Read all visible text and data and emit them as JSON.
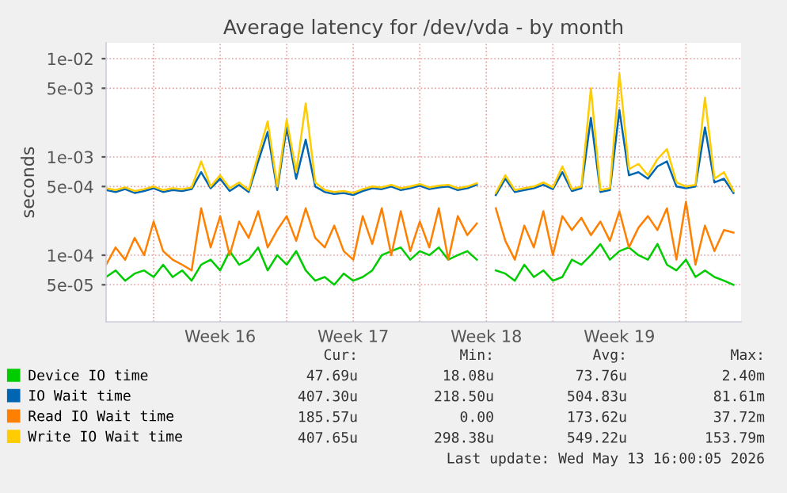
{
  "chart_data": {
    "type": "line",
    "title": "Average latency for /dev/vda - by month",
    "ylabel": "seconds",
    "x": [
      "2026-04-10T12:00",
      "2026-04-11T00:00",
      "2026-04-11T12:00",
      "2026-04-12T00:00",
      "2026-04-12T12:00",
      "2026-04-13T00:00",
      "2026-04-13T12:00",
      "2026-04-14T00:00",
      "2026-04-14T12:00",
      "2026-04-15T00:00",
      "2026-04-15T12:00",
      "2026-04-16T00:00",
      "2026-04-16T12:00",
      "2026-04-17T00:00",
      "2026-04-17T12:00",
      "2026-04-18T00:00",
      "2026-04-18T12:00",
      "2026-04-19T00:00",
      "2026-04-19T12:00",
      "2026-04-20T00:00",
      "2026-04-20T12:00",
      "2026-04-21T00:00",
      "2026-04-21T12:00",
      "2026-04-22T00:00",
      "2026-04-22T12:00",
      "2026-04-23T00:00",
      "2026-04-23T12:00",
      "2026-04-24T00:00",
      "2026-04-24T12:00",
      "2026-04-25T00:00",
      "2026-04-25T12:00",
      "2026-04-26T00:00",
      "2026-04-26T12:00",
      "2026-04-27T00:00",
      "2026-04-27T12:00",
      "2026-04-28T00:00",
      "2026-04-28T12:00",
      "2026-04-29T00:00",
      "2026-04-29T12:00",
      "2026-04-30T00:00",
      "2026-04-30T12:00",
      "2026-05-01T00:00",
      "2026-05-01T12:00",
      "2026-05-02T00:00",
      "2026-05-02T12:00",
      "2026-05-03T00:00",
      "2026-05-03T12:00",
      "2026-05-04T00:00",
      "2026-05-04T12:00",
      "2026-05-05T00:00",
      "2026-05-05T12:00",
      "2026-05-06T00:00",
      "2026-05-06T12:00",
      "2026-05-07T00:00",
      "2026-05-07T12:00",
      "2026-05-08T00:00",
      "2026-05-08T12:00",
      "2026-05-09T00:00",
      "2026-05-09T12:00",
      "2026-05-10T00:00",
      "2026-05-10T12:00",
      "2026-05-11T00:00",
      "2026-05-11T12:00",
      "2026-05-12T00:00",
      "2026-05-12T12:00",
      "2026-05-13T00:00",
      "2026-05-13T12:00"
    ],
    "series": [
      {
        "name": "Device IO time",
        "color": "#00cc00",
        "values": [
          6e-05,
          7e-05,
          5.5e-05,
          6.5e-05,
          7e-05,
          6e-05,
          8e-05,
          6e-05,
          7e-05,
          5.5e-05,
          8e-05,
          9e-05,
          7e-05,
          0.00011,
          8e-05,
          9e-05,
          0.00012,
          7e-05,
          0.0001,
          8e-05,
          0.00011,
          7e-05,
          5.5e-05,
          6e-05,
          5e-05,
          6.5e-05,
          5.5e-05,
          6e-05,
          7e-05,
          0.0001,
          0.00011,
          0.00012,
          9e-05,
          0.00011,
          0.0001,
          0.00012,
          9e-05,
          0.0001,
          0.00011,
          9e-05,
          null,
          7e-05,
          6.5e-05,
          5.5e-05,
          8e-05,
          6e-05,
          7e-05,
          5.5e-05,
          6e-05,
          9e-05,
          8e-05,
          0.0001,
          0.00013,
          9e-05,
          0.00011,
          0.00012,
          0.0001,
          9e-05,
          0.00013,
          8e-05,
          7e-05,
          9e-05,
          6e-05,
          7e-05,
          6e-05,
          5.5e-05,
          5e-05
        ]
      },
      {
        "name": "IO Wait time",
        "color": "#0066b3",
        "values": [
          0.00046,
          0.00044,
          0.00047,
          0.00043,
          0.00045,
          0.00048,
          0.00044,
          0.00046,
          0.00045,
          0.00047,
          0.0007,
          0.00048,
          0.0006,
          0.00045,
          0.00052,
          0.00044,
          0.0009,
          0.0018,
          0.00046,
          0.002,
          0.0006,
          0.0015,
          0.0005,
          0.00044,
          0.00042,
          0.00043,
          0.00041,
          0.00045,
          0.00048,
          0.00047,
          0.0005,
          0.00046,
          0.00048,
          0.00051,
          0.00047,
          0.00049,
          0.0005,
          0.00046,
          0.00048,
          0.00052,
          null,
          0.00041,
          0.0006,
          0.00044,
          0.00046,
          0.00048,
          0.00052,
          0.00047,
          0.0007,
          0.00045,
          0.00048,
          0.0025,
          0.00044,
          0.00046,
          0.003,
          0.00065,
          0.0007,
          0.0006,
          0.0008,
          0.0009,
          0.0005,
          0.00048,
          0.0005,
          0.002,
          0.00055,
          0.0006,
          0.00043
        ]
      },
      {
        "name": "Read IO Wait time",
        "color": "#ff8000",
        "values": [
          8e-05,
          0.00012,
          9e-05,
          0.00015,
          0.0001,
          0.00022,
          0.00011,
          9e-05,
          8e-05,
          7e-05,
          0.0003,
          0.00012,
          0.00025,
          0.0001,
          0.00022,
          0.00015,
          0.00028,
          0.00012,
          0.00018,
          0.00025,
          0.00014,
          0.0003,
          0.00015,
          0.00012,
          0.0002,
          0.00011,
          9e-05,
          0.00025,
          0.00013,
          0.0003,
          0.0001,
          0.00028,
          0.00011,
          0.00022,
          0.00012,
          0.0003,
          9e-05,
          0.00025,
          0.00016,
          0.00021,
          null,
          0.0003,
          0.00014,
          9e-05,
          0.0002,
          0.00012,
          0.00028,
          0.0001,
          0.00025,
          0.00018,
          0.00024,
          0.00016,
          0.00022,
          0.00014,
          0.00028,
          0.00012,
          0.00019,
          0.00025,
          0.00018,
          0.0003,
          9e-05,
          0.00035,
          8e-05,
          0.0002,
          0.00011,
          0.00018,
          0.00017
        ]
      },
      {
        "name": "Write IO Wait time",
        "color": "#ffcc00",
        "values": [
          0.00048,
          0.00046,
          0.00049,
          0.00045,
          0.00047,
          0.0005,
          0.00046,
          0.00048,
          0.00047,
          0.00049,
          0.0009,
          0.0005,
          0.00065,
          0.00048,
          0.00055,
          0.00046,
          0.00105,
          0.0023,
          0.0005,
          0.0024,
          0.0007,
          0.0035,
          0.00055,
          0.00046,
          0.00044,
          0.00045,
          0.00043,
          0.00047,
          0.0005,
          0.00049,
          0.00052,
          0.00048,
          0.0005,
          0.00053,
          0.00049,
          0.00051,
          0.00052,
          0.00048,
          0.0005,
          0.00054,
          null,
          0.00043,
          0.00065,
          0.00046,
          0.00048,
          0.0005,
          0.00055,
          0.00049,
          0.0008,
          0.00047,
          0.0005,
          0.005,
          0.00046,
          0.00048,
          0.007,
          0.00075,
          0.00085,
          0.00065,
          0.00095,
          0.0012,
          0.00055,
          0.0005,
          0.00052,
          0.004,
          0.0006,
          0.0007,
          0.00045
        ]
      }
    ],
    "log": true,
    "ylim": [
      2.1e-05,
      0.0145
    ],
    "yticks": [
      {
        "value": 5e-05,
        "label": "5e-05"
      },
      {
        "value": 0.0001,
        "label": "1e-04"
      },
      {
        "value": 0.0005,
        "label": "5e-04"
      },
      {
        "value": 0.001,
        "label": "1e-03"
      },
      {
        "value": 0.005,
        "label": "5e-03"
      },
      {
        "value": 0.01,
        "label": "1e-02"
      }
    ],
    "xlim": [
      "2026-04-10T12:00",
      "2026-05-13T21:36"
    ],
    "xticks": [
      {
        "value": "2026-04-13T00:00",
        "label": null
      },
      {
        "value": "2026-04-16T12:00",
        "label": "Week 16"
      },
      {
        "value": "2026-04-20T00:00",
        "label": null
      },
      {
        "value": "2026-04-23T12:00",
        "label": "Week 17"
      },
      {
        "value": "2026-04-27T00:00",
        "label": null
      },
      {
        "value": "2026-04-30T12:00",
        "label": "Week 18"
      },
      {
        "value": "2026-05-04T00:00",
        "label": null
      },
      {
        "value": "2026-05-07T12:00",
        "label": "Week 19"
      },
      {
        "value": "2026-05-11T00:00",
        "label": null
      }
    ],
    "grid": true,
    "legend": "bottom",
    "annotations": [
      "Cur:",
      "Min:",
      "Avg:",
      "Max:",
      "47.69u",
      "18.08u",
      "73.76u",
      "2.40m",
      "407.30u",
      "218.50u",
      "504.83u",
      "81.61m",
      "185.57u",
      "0.00",
      "173.62u",
      "37.72m",
      "407.65u",
      "298.38u",
      "549.22u",
      "153.79m",
      "Last update: Wed May 13 16:00:05 2026"
    ]
  }
}
